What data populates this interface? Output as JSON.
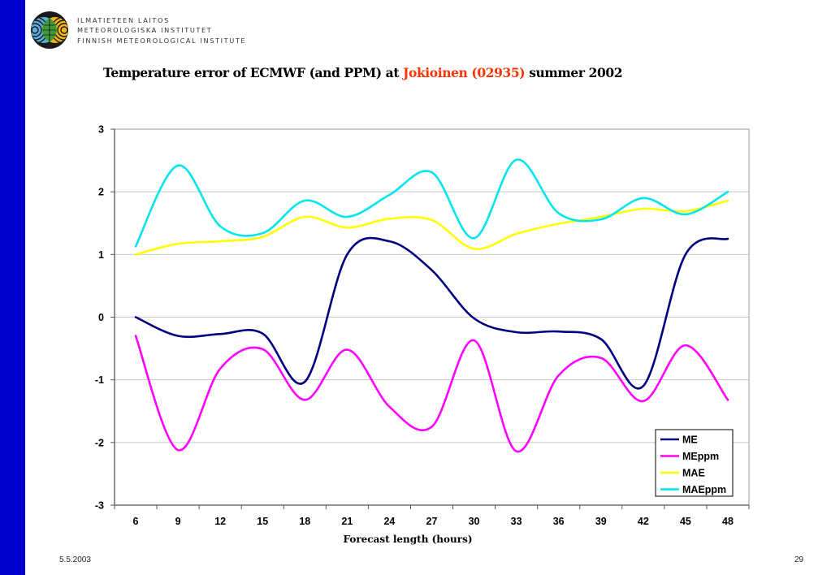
{
  "header": {
    "org_lines": [
      "ILMATIETEEN LAITOS",
      "METEOROLOGISKA INSTITUTET",
      "FINNISH METEOROLOGICAL INSTITUTE"
    ],
    "logo_icon": "fmi-logo-icon"
  },
  "footer": {
    "date": "5.5.2003",
    "page_number": "29"
  },
  "colors": {
    "sidebar": "#0000cc",
    "title_highlight": "#ff3300"
  },
  "chart_data": {
    "type": "line",
    "title": "Temperature error of ECMWF (and PPM) at Jokioinen (02935) summer 2002",
    "title_parts": {
      "before": "Temperature error of ECMWF (and PPM) at ",
      "highlight": "Jokioinen (02935)",
      "after": " summer 2002"
    },
    "xlabel": "Forecast length (hours)",
    "ylabel": "",
    "categories": [
      "6",
      "9",
      "12",
      "15",
      "18",
      "21",
      "24",
      "27",
      "30",
      "33",
      "36",
      "39",
      "42",
      "45",
      "48"
    ],
    "ylim": [
      -3,
      3
    ],
    "yticks": [
      "3",
      "2",
      "1",
      "0",
      "-1",
      "-2",
      "-3"
    ],
    "ytick_values": [
      3,
      2,
      1,
      0,
      -1,
      -2,
      -3
    ],
    "grid": true,
    "smooth": true,
    "legend_position": "bottom-right",
    "series": [
      {
        "name": "ME",
        "color": "#000080",
        "values": [
          0.0,
          -0.3,
          -0.27,
          -0.26,
          -1.03,
          1.0,
          1.21,
          0.75,
          -0.02,
          -0.24,
          -0.23,
          -0.35,
          -1.1,
          1.0,
          1.25
        ]
      },
      {
        "name": "MEppm",
        "color": "#ff00ff",
        "values": [
          -0.3,
          -2.12,
          -0.82,
          -0.51,
          -1.32,
          -0.52,
          -1.43,
          -1.75,
          -0.37,
          -2.14,
          -0.93,
          -0.65,
          -1.34,
          -0.45,
          -1.32
        ]
      },
      {
        "name": "MAE",
        "color": "#ffff00",
        "values": [
          1.0,
          1.17,
          1.21,
          1.28,
          1.6,
          1.43,
          1.57,
          1.55,
          1.09,
          1.33,
          1.49,
          1.6,
          1.73,
          1.69,
          1.86
        ]
      },
      {
        "name": "MAEppm",
        "color": "#00e5ee",
        "values": [
          1.13,
          2.42,
          1.45,
          1.34,
          1.86,
          1.6,
          1.95,
          2.31,
          1.26,
          2.51,
          1.66,
          1.56,
          1.9,
          1.64,
          2.0
        ]
      }
    ]
  }
}
